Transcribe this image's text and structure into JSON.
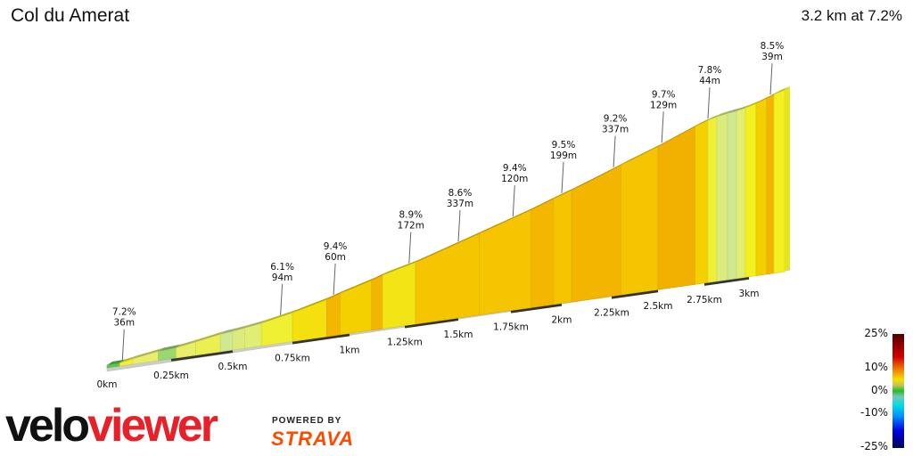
{
  "title": "Col du Amerat",
  "summary": "3.2 km at 7.2%",
  "chart_data": {
    "type": "area",
    "title": "Col du Amerat",
    "subtitle": "3.2 km at 7.2%",
    "x_unit": "km",
    "xlim": [
      0,
      3.2
    ],
    "x_ticks": [
      "0km",
      "0.25km",
      "0.5km",
      "0.75km",
      "1km",
      "1.25km",
      "1.5km",
      "1.75km",
      "2km",
      "2.25km",
      "2.5km",
      "2.75km",
      "3km"
    ],
    "x_tick_values": [
      0,
      0.25,
      0.5,
      0.75,
      1,
      1.25,
      1.5,
      1.75,
      2,
      2.25,
      2.5,
      2.75,
      3
    ],
    "segments": [
      {
        "start": 0,
        "end": 0.05,
        "gradient": 1
      },
      {
        "start": 0.05,
        "end": 0.1,
        "gradient": 6
      },
      {
        "start": 0.1,
        "end": 0.2,
        "gradient": 5
      },
      {
        "start": 0.2,
        "end": 0.27,
        "gradient": 2
      },
      {
        "start": 0.27,
        "end": 0.35,
        "gradient": 5
      },
      {
        "start": 0.35,
        "end": 0.45,
        "gradient": 5.5
      },
      {
        "start": 0.45,
        "end": 0.5,
        "gradient": 3
      },
      {
        "start": 0.5,
        "end": 0.55,
        "gradient": 4
      },
      {
        "start": 0.55,
        "end": 0.62,
        "gradient": 4.5
      },
      {
        "start": 0.62,
        "end": 0.75,
        "gradient": 6.1
      },
      {
        "start": 0.75,
        "end": 0.9,
        "gradient": 7.3
      },
      {
        "start": 0.9,
        "end": 0.96,
        "gradient": 9.4
      },
      {
        "start": 0.96,
        "end": 1.1,
        "gradient": 8
      },
      {
        "start": 1.1,
        "end": 1.15,
        "gradient": 9.5
      },
      {
        "start": 1.15,
        "end": 1.3,
        "gradient": 7
      },
      {
        "start": 1.3,
        "end": 1.6,
        "gradient": 8.6
      },
      {
        "start": 1.6,
        "end": 1.85,
        "gradient": 8.6
      },
      {
        "start": 1.85,
        "end": 1.96,
        "gradient": 9.4
      },
      {
        "start": 1.96,
        "end": 2.05,
        "gradient": 8.6
      },
      {
        "start": 2.05,
        "end": 2.3,
        "gradient": 9.5
      },
      {
        "start": 2.3,
        "end": 2.5,
        "gradient": 8.6
      },
      {
        "start": 2.5,
        "end": 2.7,
        "gradient": 9.7
      },
      {
        "start": 2.7,
        "end": 2.77,
        "gradient": 8
      },
      {
        "start": 2.77,
        "end": 2.82,
        "gradient": 6
      },
      {
        "start": 2.82,
        "end": 2.88,
        "gradient": 4
      },
      {
        "start": 2.88,
        "end": 2.93,
        "gradient": 3
      },
      {
        "start": 2.93,
        "end": 2.98,
        "gradient": 4.5
      },
      {
        "start": 2.98,
        "end": 3.04,
        "gradient": 6.5
      },
      {
        "start": 3.04,
        "end": 3.1,
        "gradient": 8
      },
      {
        "start": 3.1,
        "end": 3.14,
        "gradient": 9.5
      },
      {
        "start": 3.14,
        "end": 3.2,
        "gradient": 6.5
      }
    ],
    "annotations": [
      {
        "km": 0.06,
        "gradient": "7.2%",
        "length": "36m"
      },
      {
        "km": 0.7,
        "gradient": "6.1%",
        "length": "94m"
      },
      {
        "km": 0.93,
        "gradient": "9.4%",
        "length": "60m"
      },
      {
        "km": 1.27,
        "gradient": "8.9%",
        "length": "172m"
      },
      {
        "km": 1.5,
        "gradient": "8.6%",
        "length": "337m"
      },
      {
        "km": 1.76,
        "gradient": "9.4%",
        "length": "120m"
      },
      {
        "km": 2.0,
        "gradient": "9.5%",
        "length": "199m"
      },
      {
        "km": 2.26,
        "gradient": "9.2%",
        "length": "337m"
      },
      {
        "km": 2.52,
        "gradient": "9.7%",
        "length": "129m"
      },
      {
        "km": 2.77,
        "gradient": "7.8%",
        "length": "44m"
      },
      {
        "km": 3.12,
        "gradient": "8.5%",
        "length": "39m"
      }
    ],
    "legend": {
      "labels": [
        "25%",
        "10%",
        "0%",
        "-10%",
        "-25%"
      ],
      "placement": "bottom-right"
    }
  },
  "logo": {
    "part1": "velo",
    "part2": "viewer",
    "powered_by": "POWERED BY",
    "strava": "STRAVA"
  },
  "colors": {
    "brand_red": "#e8202a",
    "strava_orange": "#fc4c02"
  }
}
